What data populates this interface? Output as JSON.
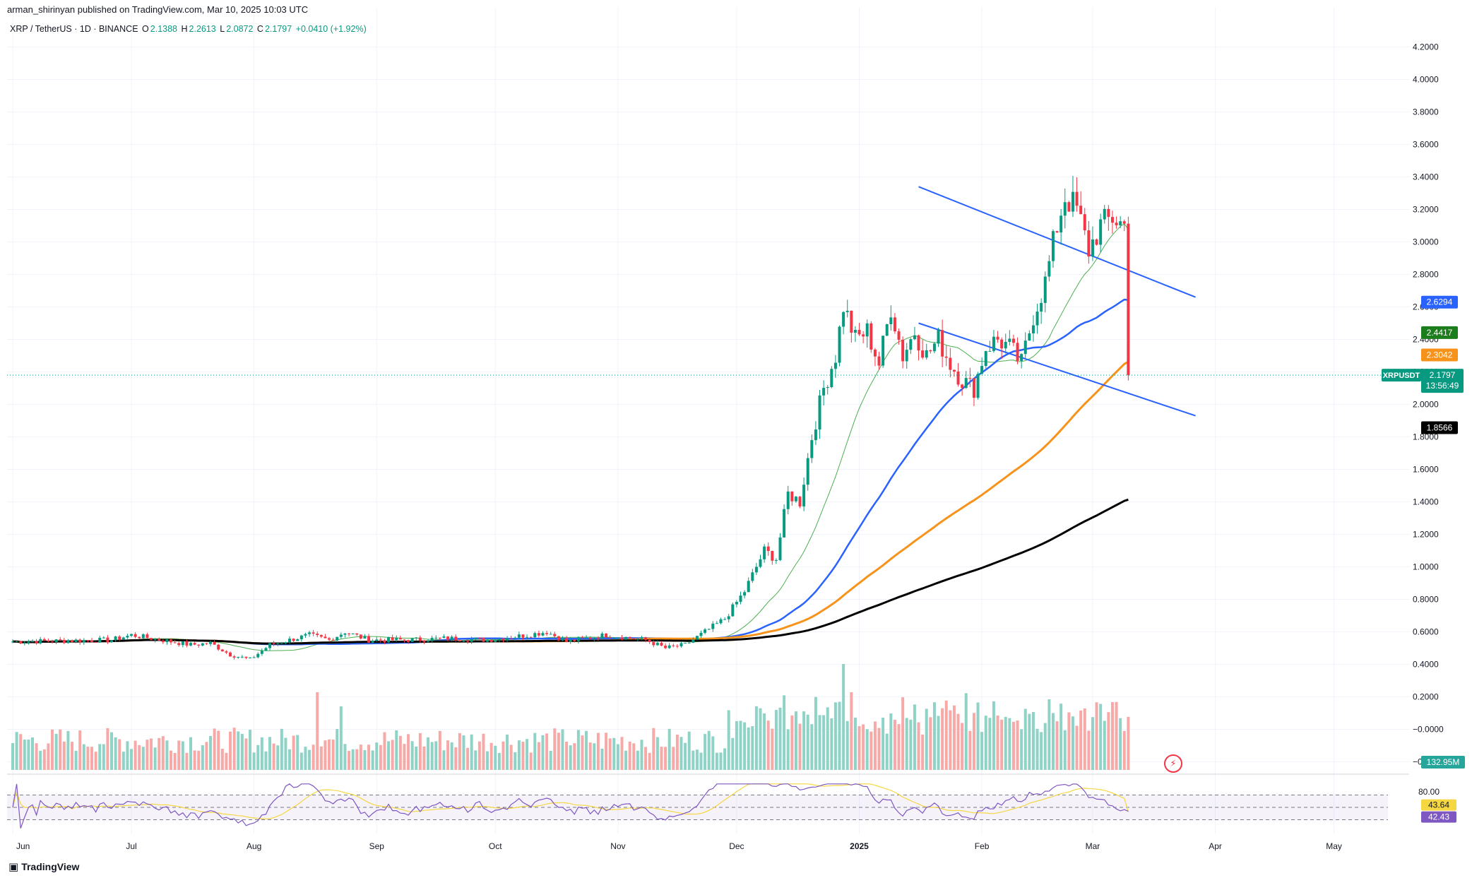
{
  "header": {
    "published": "arman_shirinyan published on TradingView.com, Mar 10, 2025 10:03 UTC",
    "symbol": "XRP / TetherUS · 1D · BINANCE",
    "ohlc": [
      {
        "label": "O",
        "value": "2.1388"
      },
      {
        "label": "H",
        "value": "2.2613"
      },
      {
        "label": "L",
        "value": "2.0872"
      },
      {
        "label": "C",
        "value": "2.1797"
      }
    ],
    "change": "+0.0410 (+1.92%)"
  },
  "colors": {
    "up": "#089981",
    "down": "#f23645",
    "up_vol": "#8fd3c7",
    "down_vol": "#f7a9a7",
    "ma_fast": "#4caf50",
    "ma_blue": "#2962ff",
    "ma_orange": "#f7931a",
    "ma_black": "#000000",
    "channel": "#2962ff",
    "rsi": "#7e57c2",
    "rsi_ma": "#f5d742"
  },
  "branding": {
    "logo": "TradingView",
    "logo_icon": "tradingview-logo-icon",
    "bolt_icon": "bolt-icon"
  },
  "chart_data": {
    "type": "candlestick",
    "symbol": "XRPUSDT",
    "x_ticks": [
      "Jun",
      "Jul",
      "Aug",
      "Sep",
      "Oct",
      "Nov",
      "Dec",
      "2025",
      "Feb",
      "Mar",
      "Apr",
      "May"
    ],
    "y_ticks": [
      "4.2000",
      "4.0000",
      "3.8000",
      "3.6000",
      "3.4000",
      "3.2000",
      "3.0000",
      "2.8000",
      "2.6000",
      "2.4000",
      "2.2000",
      "2.0000",
      "1.8000",
      "1.6000",
      "1.4000",
      "1.2000",
      "1.0000",
      "0.8000",
      "0.6000",
      "0.4000",
      "0.2000",
      "−0.0000",
      "−0.2000"
    ],
    "ylim": [
      -0.25,
      4.25
    ],
    "price_labels": [
      {
        "text": "2.6294",
        "value": 2.6294,
        "color": "#2962ff"
      },
      {
        "text": "2.4417",
        "value": 2.4417,
        "color": "#1b7d1b"
      },
      {
        "text": "2.3042",
        "value": 2.3042,
        "color": "#f7931a"
      },
      {
        "text": "1.8566",
        "value": 1.8566,
        "color": "#000000"
      }
    ],
    "current": {
      "symbol": "XRPUSDT",
      "price": "2.1797",
      "countdown": "13:56:49",
      "value": 2.1797
    },
    "volume_label": "132.95M",
    "rsi": {
      "ticks": [
        "80.00"
      ],
      "labels": [
        "43.64",
        "42.43"
      ],
      "value": 43.64,
      "ma_value": 42.43,
      "upper": 70,
      "lower": 30
    },
    "anchors": [
      [
        0,
        0.54
      ],
      [
        25,
        0.55
      ],
      [
        30,
        0.58
      ],
      [
        45,
        0.52
      ],
      [
        50,
        0.53
      ],
      [
        55,
        0.46
      ],
      [
        60,
        0.43
      ],
      [
        65,
        0.52
      ],
      [
        75,
        0.58
      ],
      [
        80,
        0.55
      ],
      [
        84,
        0.6
      ],
      [
        90,
        0.55
      ],
      [
        100,
        0.55
      ],
      [
        110,
        0.56
      ],
      [
        120,
        0.55
      ],
      [
        130,
        0.58
      ],
      [
        135,
        0.6
      ],
      [
        140,
        0.54
      ],
      [
        150,
        0.58
      ],
      [
        160,
        0.55
      ],
      [
        165,
        0.5
      ],
      [
        170,
        0.52
      ],
      [
        175,
        0.6
      ],
      [
        180,
        0.68
      ],
      [
        185,
        0.85
      ],
      [
        190,
        1.1
      ],
      [
        193,
        1.05
      ],
      [
        196,
        1.45
      ],
      [
        199,
        1.4
      ],
      [
        202,
        1.8
      ],
      [
        205,
        2.1
      ],
      [
        208,
        2.3
      ],
      [
        210,
        2.61
      ],
      [
        213,
        2.4
      ],
      [
        216,
        2.45
      ],
      [
        219,
        2.25
      ],
      [
        222,
        2.6
      ],
      [
        225,
        2.3
      ],
      [
        228,
        2.45
      ],
      [
        231,
        2.3
      ],
      [
        234,
        2.4
      ],
      [
        237,
        2.25
      ],
      [
        240,
        2.15
      ],
      [
        243,
        2.1
      ],
      [
        246,
        2.35
      ],
      [
        249,
        2.4
      ],
      [
        252,
        2.35
      ],
      [
        255,
        2.25
      ],
      [
        258,
        2.55
      ],
      [
        261,
        2.75
      ],
      [
        264,
        3.1
      ],
      [
        266,
        3.28
      ],
      [
        269,
        3.2
      ],
      [
        272,
        2.95
      ],
      [
        275,
        3.1
      ],
      [
        278,
        3.15
      ],
      [
        281,
        3.1
      ],
      [
        284,
        2.8
      ],
      [
        287,
        2.55
      ],
      [
        290,
        2.35
      ],
      [
        293,
        2.4
      ],
      [
        296,
        2.55
      ],
      [
        299,
        2.72
      ],
      [
        302,
        2.7
      ],
      [
        305,
        2.6
      ],
      [
        308,
        2.28
      ],
      [
        311,
        2.15
      ],
      [
        313,
        2.2
      ],
      [
        315,
        2.9
      ],
      [
        317,
        2.35
      ],
      [
        319,
        2.45
      ],
      [
        321,
        2.6
      ],
      [
        323,
        2.4
      ],
      [
        325,
        2.23
      ],
      [
        326,
        2.18
      ]
    ],
    "volume_spikes": [
      [
        77,
        0.55
      ],
      [
        83,
        0.45
      ],
      [
        140,
        0.2
      ],
      [
        186,
        0.3
      ],
      [
        190,
        0.4
      ],
      [
        210,
        0.75
      ],
      [
        212,
        0.55
      ],
      [
        222,
        0.4
      ],
      [
        262,
        0.5
      ],
      [
        285,
        0.85
      ],
      [
        298,
        0.25
      ],
      [
        313,
        0.35
      ]
    ],
    "channel_upper": [
      [
        3.34,
        "2025-01-16"
      ],
      [
        2.66,
        "2025-03-27"
      ]
    ],
    "channel_lower": [
      [
        2.5,
        "2025-01-16"
      ],
      [
        1.93,
        "2025-03-27"
      ]
    ],
    "x_range": {
      "first_bar": "2024-06-01",
      "last_bar": "2025-03-10",
      "axis_end": "2025-05-20"
    }
  }
}
